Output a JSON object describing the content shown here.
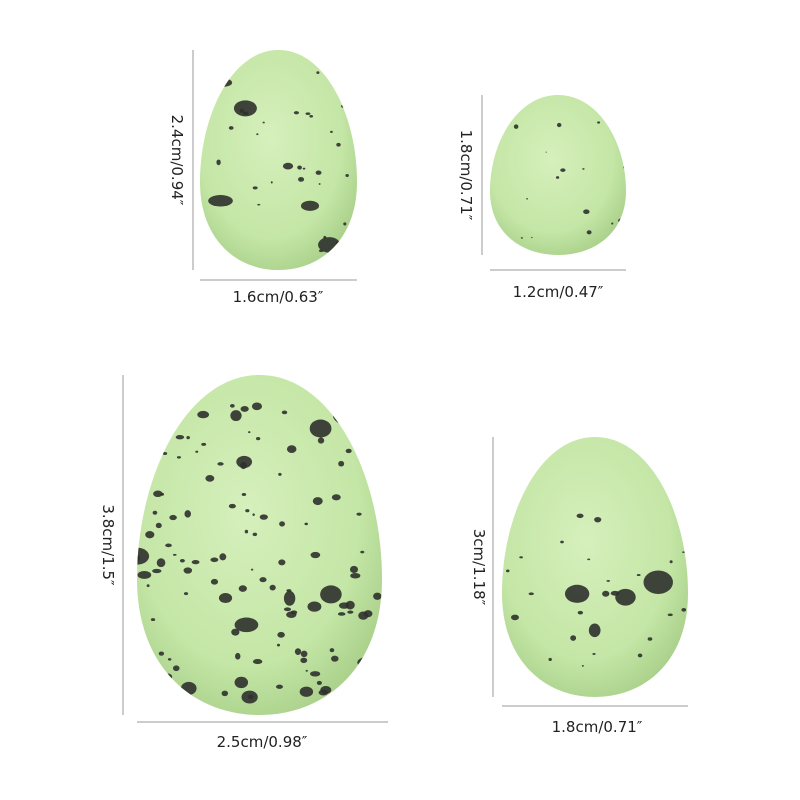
{
  "colors": {
    "egg_light": "#d6f0bc",
    "egg_mid": "#c4e6a6",
    "egg_edge": "#a9d08a",
    "speckle": "#2f312d",
    "dimension_line": "#999999"
  },
  "eggs": [
    {
      "width_label": "1.6cm/0.63″",
      "height_label": "2.4cm/0.94″"
    },
    {
      "width_label": "1.2cm/0.47″",
      "height_label": "1.8cm/0.71″"
    },
    {
      "width_label": "2.5cm/0.98″",
      "height_label": "3.8cm/1.5″"
    },
    {
      "width_label": "1.8cm/0.71″",
      "height_label": "3cm/1.18″"
    }
  ]
}
